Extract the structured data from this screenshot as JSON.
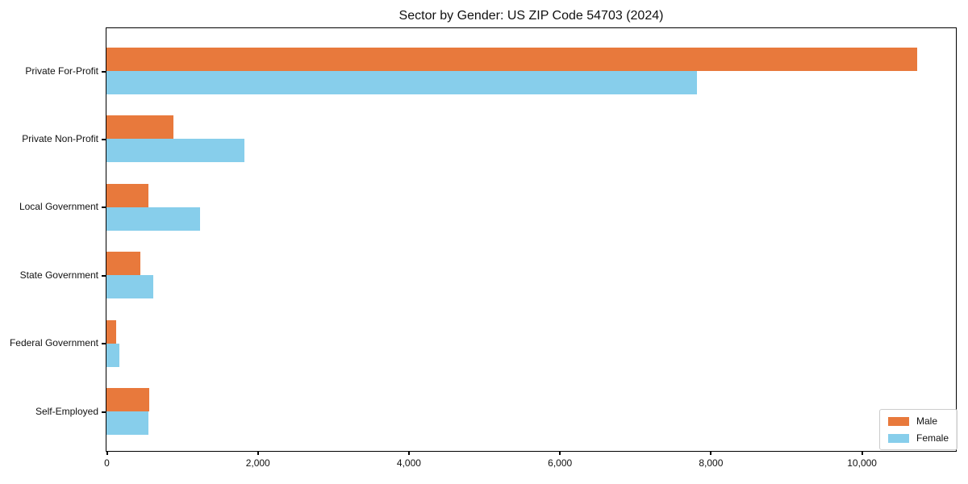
{
  "title": "Sector by Gender: US ZIP Code 54703 (2024)",
  "colors": {
    "male": "#E8793C",
    "female": "#87CEEB",
    "axis": "#000000",
    "text": "#111111",
    "legend_border": "#cccccc"
  },
  "legend": {
    "items": [
      {
        "label": "Male",
        "color": "#E8793C"
      },
      {
        "label": "Female",
        "color": "#87CEEB"
      }
    ]
  },
  "chart_data": {
    "type": "bar",
    "orientation": "horizontal",
    "title": "Sector by Gender: US ZIP Code 54703 (2024)",
    "categories": [
      "Private For-Profit",
      "Private Non-Profit",
      "Local Government",
      "State Government",
      "Federal Government",
      "Self-Employed"
    ],
    "series": [
      {
        "name": "Male",
        "color": "#E8793C",
        "values": [
          10740,
          890,
          560,
          450,
          130,
          570
        ]
      },
      {
        "name": "Female",
        "color": "#87CEEB",
        "values": [
          7820,
          1830,
          1240,
          620,
          170,
          560
        ]
      }
    ],
    "xlabel": "",
    "ylabel": "",
    "xlim": [
      0,
      11270
    ],
    "xticks": [
      0,
      2000,
      4000,
      6000,
      8000,
      10000
    ],
    "xtick_labels": [
      "0",
      "2,000",
      "4,000",
      "6,000",
      "8,000",
      "10,000"
    ],
    "grid": false,
    "legend_position": "lower right"
  }
}
